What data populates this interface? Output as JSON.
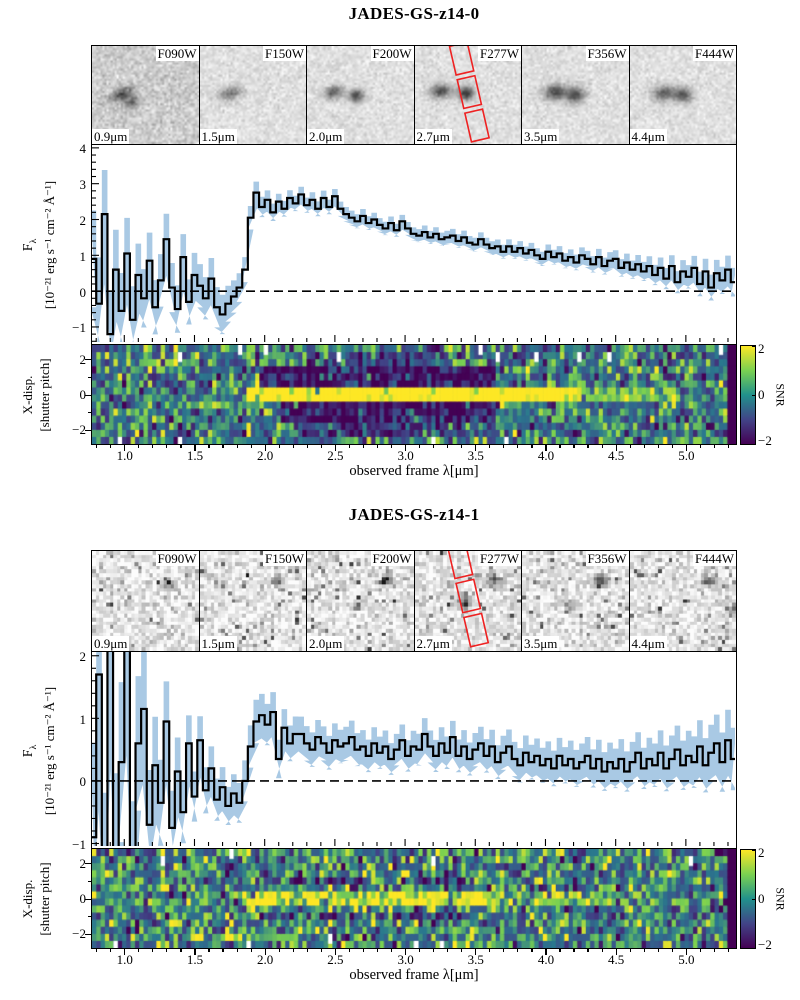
{
  "figure": {
    "xlabel": "observed frame λ[μm]",
    "x_axis": {
      "min": 0.77,
      "max": 5.35,
      "major_ticks": [
        1.0,
        1.5,
        2.0,
        2.5,
        3.0,
        3.5,
        4.0,
        4.5,
        5.0
      ],
      "minor_step": 0.1
    },
    "colors": {
      "flux_line": "#000000",
      "error_band": "#a9c9e4",
      "shutter": "#ee2222",
      "axis": "#000000",
      "background": "#ffffff",
      "colormap": "viridis"
    }
  },
  "chart_data": [
    {
      "type": "line",
      "title": "JADES-GS-z14-0",
      "cutouts": {
        "style": {
          "base": 224,
          "sigma": 13,
          "grid": [
            52,
            48
          ],
          "crisp": false,
          "pepper": 0
        },
        "items": [
          {
            "filter": "F090W",
            "wavelength": "0.9μm",
            "base": 205,
            "sigma": 19,
            "blobs": [
              {
                "x": 0.27,
                "y": 0.48,
                "sx": 0.085,
                "sy": 0.045,
                "a": 115,
                "rot": -28
              },
              {
                "x": 0.36,
                "y": 0.56,
                "sx": 0.05,
                "sy": 0.04,
                "a": 95,
                "rot": -28
              }
            ]
          },
          {
            "filter": "F150W",
            "wavelength": "1.5μm",
            "blobs": [
              {
                "x": 0.28,
                "y": 0.47,
                "sx": 0.08,
                "sy": 0.045,
                "a": 105,
                "rot": -18
              }
            ]
          },
          {
            "filter": "F200W",
            "wavelength": "2.0μm",
            "blobs": [
              {
                "x": 0.24,
                "y": 0.46,
                "sx": 0.06,
                "sy": 0.045,
                "a": 135,
                "rot": -12
              },
              {
                "x": 0.45,
                "y": 0.5,
                "sx": 0.05,
                "sy": 0.045,
                "a": 155,
                "rot": 0
              }
            ]
          },
          {
            "filter": "F277W",
            "wavelength": "2.7μm",
            "blobs": [
              {
                "x": 0.23,
                "y": 0.45,
                "sx": 0.07,
                "sy": 0.05,
                "a": 145,
                "rot": -8
              },
              {
                "x": 0.47,
                "y": 0.47,
                "sx": 0.055,
                "sy": 0.05,
                "a": 165,
                "rot": 0
              }
            ]
          },
          {
            "filter": "F356W",
            "wavelength": "3.5μm",
            "blobs": [
              {
                "x": 0.3,
                "y": 0.46,
                "sx": 0.075,
                "sy": 0.055,
                "a": 150,
                "rot": -8
              },
              {
                "x": 0.49,
                "y": 0.49,
                "sx": 0.06,
                "sy": 0.055,
                "a": 150,
                "rot": 0
              }
            ]
          },
          {
            "filter": "F444W",
            "wavelength": "4.4μm",
            "blobs": [
              {
                "x": 0.31,
                "y": 0.47,
                "sx": 0.07,
                "sy": 0.055,
                "a": 135,
                "rot": -8
              },
              {
                "x": 0.49,
                "y": 0.49,
                "sx": 0.06,
                "sy": 0.055,
                "a": 135,
                "rot": 0
              }
            ]
          }
        ],
        "shutter": {
          "cutout_index": 3,
          "cx": 0.51,
          "cy": 0.47,
          "w": 0.17,
          "h": 0.3,
          "gap": 0.05,
          "tilt_deg": -13
        }
      },
      "spectrum": {
        "ylabel_sym": "F",
        "ylabel_sub": "λ",
        "ylabel_units": "[10⁻²¹ erg s⁻¹ cm⁻² Å⁻¹]",
        "y_ticks": [
          -1,
          0,
          1,
          2,
          3,
          4
        ],
        "y_minor_step": 0.2,
        "y_min": -1.42,
        "y_max": 4.08,
        "zero_line": 0,
        "x_start": 0.78,
        "x_step": 0.04,
        "flux": [
          0.9,
          -0.35,
          2.15,
          -1.2,
          0.6,
          -0.55,
          1.05,
          -0.8,
          0.45,
          -0.2,
          0.85,
          -0.45,
          0.3,
          1.45,
          0.1,
          -0.5,
          0.95,
          -0.3,
          0.45,
          0.15,
          -0.2,
          0.35,
          -0.45,
          -0.65,
          -0.35,
          -0.15,
          0.1,
          0.6,
          2.05,
          2.75,
          2.35,
          2.55,
          2.2,
          2.5,
          2.3,
          2.6,
          2.45,
          2.7,
          2.4,
          2.55,
          2.3,
          2.6,
          2.35,
          2.65,
          2.3,
          2.15,
          2.05,
          1.95,
          2.1,
          1.9,
          2.0,
          1.85,
          1.75,
          1.9,
          1.7,
          1.95,
          1.75,
          1.6,
          1.55,
          1.65,
          1.5,
          1.6,
          1.45,
          1.5,
          1.55,
          1.4,
          1.5,
          1.35,
          1.3,
          1.45,
          1.3,
          1.2,
          1.25,
          1.1,
          1.25,
          1.1,
          1.2,
          1.05,
          1.15,
          1.0,
          0.9,
          1.1,
          0.95,
          1.05,
          0.85,
          0.95,
          0.8,
          1.0,
          0.9,
          0.75,
          0.95,
          0.7,
          0.85,
          0.9,
          0.65,
          0.8,
          0.6,
          0.75,
          0.55,
          0.7,
          0.45,
          0.65,
          0.35,
          0.7,
          0.25,
          0.55,
          0.4,
          0.65,
          0.2,
          0.55,
          0.1,
          0.5,
          0.3,
          0.6,
          0.25
        ],
        "err_points": [
          [
            0.78,
            1.35
          ],
          [
            0.95,
            1.1
          ],
          [
            1.15,
            0.8
          ],
          [
            1.4,
            0.65
          ],
          [
            1.7,
            0.55
          ],
          [
            1.86,
            0.35
          ],
          [
            2.1,
            0.22
          ],
          [
            3.0,
            0.18
          ],
          [
            4.0,
            0.2
          ],
          [
            4.6,
            0.25
          ],
          [
            5.0,
            0.32
          ],
          [
            5.34,
            0.4
          ]
        ]
      },
      "snr_map": {
        "ylabel_line1": "X-disp.",
        "ylabel_line2": "[shutter pitch]",
        "y_ticks": [
          2,
          0,
          -2
        ],
        "y_minor_step": 1,
        "y_min": -2.83,
        "y_max": 2.83,
        "colorbar": {
          "label": "SNR",
          "ticks": [
            2,
            0,
            -2
          ],
          "vmin": -2,
          "vmax": 2
        },
        "noise": {
          "seed": 11,
          "mean": -0.1,
          "sigma": 0.85,
          "cols": 150,
          "rows": 14,
          "white_cells": 14
        },
        "traces": [
          {
            "offset": 0,
            "x0": 1.87,
            "x1": 4.2,
            "snr": 3.0,
            "hw": 0.45
          },
          {
            "offset": 0,
            "x0": 4.2,
            "x1": 4.95,
            "snr": 1.1,
            "hw": 0.25
          },
          {
            "offset": 1,
            "x0": 1.95,
            "x1": 3.65,
            "snr": -1.6,
            "hw": 0.45
          },
          {
            "offset": -1,
            "x0": 2.1,
            "x1": 3.65,
            "snr": -1.5,
            "hw": 0.45
          },
          {
            "offset": -2,
            "x0": 2.2,
            "x1": 3.3,
            "snr": -1.0,
            "hw": 0.25
          },
          {
            "offset": 2,
            "x0": 2.3,
            "x1": 3.2,
            "snr": -0.7,
            "hw": 0.25
          }
        ],
        "right_edge_dark": true
      }
    },
    {
      "type": "line",
      "title": "JADES-GS-z14-1",
      "cutouts": {
        "style": {
          "base": 228,
          "sigma": 26,
          "grid": [
            30,
            27
          ],
          "crisp": true,
          "pepper": 0.05
        },
        "items": [
          {
            "filter": "F090W",
            "wavelength": "0.9μm",
            "blobs": [
              {
                "x": 0.7,
                "y": 0.3,
                "sx": 0.045,
                "sy": 0.04,
                "a": 85,
                "rot": 0
              }
            ]
          },
          {
            "filter": "F150W",
            "wavelength": "1.5μm",
            "blobs": [
              {
                "x": 0.71,
                "y": 0.28,
                "sx": 0.035,
                "sy": 0.035,
                "a": 150,
                "rot": 0
              }
            ]
          },
          {
            "filter": "F200W",
            "wavelength": "2.0μm",
            "blobs": [
              {
                "x": 0.73,
                "y": 0.27,
                "sx": 0.035,
                "sy": 0.035,
                "a": 170,
                "rot": 0
              },
              {
                "x": 0.45,
                "y": 0.53,
                "sx": 0.032,
                "sy": 0.032,
                "a": 130,
                "rot": 0
              }
            ]
          },
          {
            "filter": "F277W",
            "wavelength": "2.7μm",
            "blobs": [
              {
                "x": 0.74,
                "y": 0.27,
                "sx": 0.045,
                "sy": 0.04,
                "a": 170,
                "rot": 0
              },
              {
                "x": 0.45,
                "y": 0.5,
                "sx": 0.04,
                "sy": 0.04,
                "a": 150,
                "rot": 0
              }
            ]
          },
          {
            "filter": "F356W",
            "wavelength": "3.5μm",
            "blobs": [
              {
                "x": 0.72,
                "y": 0.27,
                "sx": 0.05,
                "sy": 0.045,
                "a": 150,
                "rot": 0
              },
              {
                "x": 0.43,
                "y": 0.52,
                "sx": 0.05,
                "sy": 0.04,
                "a": 80,
                "rot": 0
              }
            ]
          },
          {
            "filter": "F444W",
            "wavelength": "4.4μm",
            "blobs": [
              {
                "x": 0.73,
                "y": 0.28,
                "sx": 0.05,
                "sy": 0.045,
                "a": 130,
                "rot": 0
              },
              {
                "x": 0.98,
                "y": 0.55,
                "sx": 0.04,
                "sy": 0.05,
                "a": 110,
                "rot": 0
              }
            ]
          }
        ],
        "shutter": {
          "cutout_index": 3,
          "cx": 0.5,
          "cy": 0.45,
          "w": 0.17,
          "h": 0.3,
          "gap": 0.05,
          "tilt_deg": -13
        }
      },
      "spectrum": {
        "ylabel_sym": "F",
        "ylabel_sub": "λ",
        "ylabel_units": "[10⁻²¹ erg s⁻¹ cm⁻² Å⁻¹]",
        "y_ticks": [
          -1,
          0,
          1,
          2
        ],
        "y_minor_step": 0.2,
        "y_min": -1.04,
        "y_max": 2.06,
        "zero_line": 0,
        "x_start": 0.78,
        "x_step": 0.04,
        "flux": [
          -0.9,
          1.7,
          -1.6,
          2.5,
          -1.2,
          0.3,
          2.3,
          -1.5,
          0.6,
          1.15,
          -0.7,
          0.25,
          -0.35,
          0.95,
          -0.75,
          0.15,
          -0.5,
          0.6,
          -0.25,
          0.65,
          -0.15,
          0.2,
          -0.3,
          -0.1,
          -0.4,
          -0.2,
          -0.35,
          0.0,
          0.55,
          0.95,
          1.05,
          0.9,
          1.1,
          0.35,
          0.85,
          0.6,
          0.75,
          0.75,
          0.6,
          0.5,
          0.7,
          0.6,
          0.45,
          0.65,
          0.55,
          0.6,
          0.7,
          0.5,
          0.55,
          0.4,
          0.6,
          0.45,
          0.55,
          0.35,
          0.5,
          0.65,
          0.4,
          0.55,
          0.5,
          0.75,
          0.55,
          0.4,
          0.6,
          0.45,
          0.7,
          0.4,
          0.55,
          0.35,
          0.5,
          0.6,
          0.4,
          0.55,
          0.3,
          0.45,
          0.55,
          0.35,
          0.25,
          0.45,
          0.3,
          0.4,
          0.25,
          0.35,
          0.2,
          0.4,
          0.25,
          0.35,
          0.2,
          0.3,
          0.4,
          0.2,
          0.35,
          0.15,
          0.3,
          0.2,
          0.35,
          0.15,
          0.3,
          0.45,
          0.2,
          0.35,
          0.25,
          0.45,
          0.2,
          0.35,
          0.5,
          0.25,
          0.4,
          0.3,
          0.55,
          0.25,
          0.45,
          0.6,
          0.3,
          0.65,
          0.35
        ],
        "err_points": [
          [
            0.78,
            1.5
          ],
          [
            1.05,
            1.2
          ],
          [
            1.25,
            0.7
          ],
          [
            1.5,
            0.4
          ],
          [
            1.75,
            0.3
          ],
          [
            1.95,
            0.35
          ],
          [
            2.2,
            0.28
          ],
          [
            3.0,
            0.25
          ],
          [
            4.0,
            0.28
          ],
          [
            4.7,
            0.33
          ],
          [
            5.1,
            0.42
          ],
          [
            5.34,
            0.5
          ]
        ]
      },
      "snr_map": {
        "ylabel_line1": "X-disp.",
        "ylabel_line2": "[shutter pitch]",
        "y_ticks": [
          2,
          0,
          -2
        ],
        "y_minor_step": 1,
        "y_min": -2.83,
        "y_max": 2.83,
        "colorbar": {
          "label": "SNR",
          "ticks": [
            2,
            0,
            -2
          ],
          "vmin": -2,
          "vmax": 2
        },
        "noise": {
          "seed": 23,
          "mean": 0.0,
          "sigma": 0.95,
          "cols": 150,
          "rows": 14,
          "white_cells": 10
        },
        "traces": [
          {
            "offset": 0,
            "x0": 1.85,
            "x1": 3.65,
            "snr": 1.8,
            "hw": 0.25
          },
          {
            "offset": 0,
            "x0": 3.65,
            "x1": 4.6,
            "snr": 0.7,
            "hw": 0.25
          },
          {
            "offset": 1,
            "x0": 2.0,
            "x1": 3.5,
            "snr": -0.8,
            "hw": 0.25
          },
          {
            "offset": -1,
            "x0": 2.0,
            "x1": 3.5,
            "snr": -0.8,
            "hw": 0.25
          }
        ],
        "right_edge_dark": true
      }
    }
  ]
}
